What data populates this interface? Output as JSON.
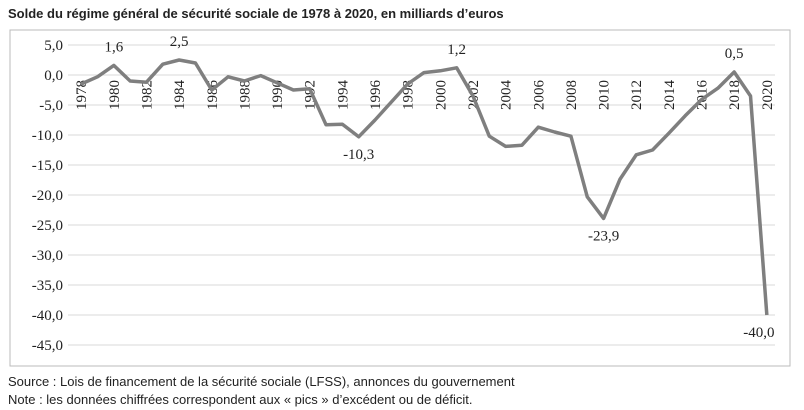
{
  "chart_data": {
    "type": "line",
    "title": "Solde du régime général de sécurité sociale de 1978 à 2020, en milliards d’euros",
    "categories": [
      "1978",
      null,
      "1980",
      null,
      "1982",
      null,
      "1984",
      null,
      "1986",
      null,
      "1988",
      null,
      "1990",
      null,
      "1992",
      null,
      "1994",
      null,
      "1996",
      null,
      "1998",
      null,
      "2000",
      null,
      "2002",
      null,
      "2004",
      null,
      "2006",
      null,
      "2008",
      null,
      "2010",
      null,
      "2012",
      null,
      "2014",
      null,
      "2016",
      null,
      "2018",
      null,
      "2020"
    ],
    "values": [
      -1.5,
      -0.3,
      1.6,
      -1.0,
      -1.2,
      1.8,
      2.5,
      2.0,
      -2.5,
      -0.3,
      -1.0,
      -0.1,
      -1.3,
      -2.5,
      -2.3,
      -8.3,
      -8.2,
      -10.3,
      -7.5,
      -4.5,
      -1.5,
      0.4,
      0.7,
      1.2,
      -3.5,
      -10.2,
      -11.9,
      -11.7,
      -8.7,
      -9.5,
      -10.2,
      -20.3,
      -23.9,
      -17.4,
      -13.3,
      -12.5,
      -9.7,
      -6.8,
      -4.1,
      -2.2,
      0.5,
      -3.5,
      -40.0
    ],
    "value_labels": [
      null,
      null,
      "1,6",
      null,
      null,
      null,
      "2,5",
      null,
      null,
      null,
      null,
      null,
      null,
      null,
      null,
      null,
      null,
      "-10,3",
      null,
      null,
      null,
      null,
      null,
      "1,2",
      null,
      null,
      null,
      null,
      null,
      null,
      null,
      null,
      "-23,9",
      null,
      null,
      null,
      null,
      null,
      null,
      null,
      "0,5",
      null,
      "-40,0"
    ],
    "color": "#7f7f7f",
    "ylim": [
      -45,
      5
    ],
    "yticks": [
      {
        "value": 5,
        "label": "5,0"
      },
      {
        "value": 0,
        "label": "0,0"
      },
      {
        "value": -5,
        "label": "-5,0"
      },
      {
        "value": -10,
        "label": "-10,0"
      },
      {
        "value": -15,
        "label": "-15,0"
      },
      {
        "value": -20,
        "label": "-20,0"
      },
      {
        "value": -25,
        "label": "-25,0"
      },
      {
        "value": -30,
        "label": "-30,0"
      },
      {
        "value": -35,
        "label": "-35,0"
      },
      {
        "value": -40,
        "label": "-40,0"
      },
      {
        "value": -45,
        "label": "-45,0"
      }
    ],
    "grid": true,
    "source": "Source : Lois de financement de la sécurité sociale (LFSS), annonces du gouvernement",
    "note": "Note : les données chiffrées correspondent aux « pics » d’excédent ou de déficit."
  }
}
